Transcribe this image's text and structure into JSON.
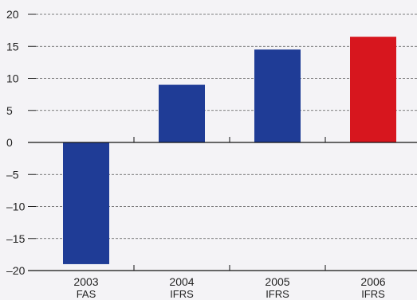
{
  "chart_data": {
    "type": "bar",
    "title": "",
    "xlabel": "",
    "ylabel": "",
    "categories": [
      "2003",
      "2004",
      "2005",
      "2006"
    ],
    "sublabels": [
      "FAS",
      "IFRS",
      "IFRS",
      "IFRS"
    ],
    "values": [
      -19,
      9,
      14.5,
      16.5
    ],
    "colors": [
      "#1f3c96",
      "#1f3c96",
      "#1f3c96",
      "#d7161e"
    ],
    "ylim": [
      -20,
      20
    ],
    "yticks": [
      20,
      15,
      10,
      5,
      0,
      -5,
      -10,
      -15,
      -20
    ],
    "ytick_labels": [
      "20",
      "15",
      "10",
      "5",
      "0",
      "–5",
      "–10",
      "–15",
      "–20"
    ],
    "grid": true,
    "legend": "none"
  }
}
